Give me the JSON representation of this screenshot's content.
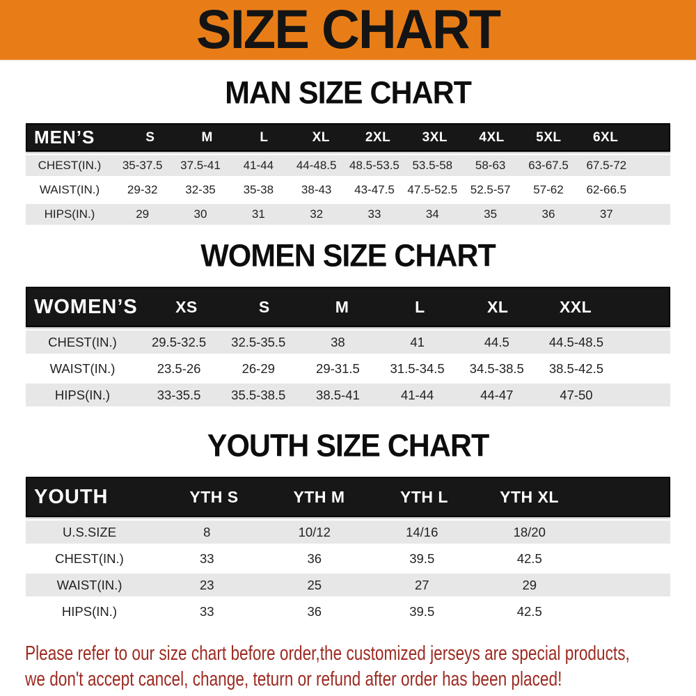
{
  "banner": {
    "title": "SIZE CHART"
  },
  "sections": [
    {
      "key": "men",
      "title": "MAN SIZE CHART",
      "header": {
        "label": "MEN’S",
        "columns": [
          "S",
          "M",
          "L",
          "XL",
          "2XL",
          "3XL",
          "4XL",
          "5XL",
          "6XL"
        ]
      },
      "rows": [
        {
          "label": "CHEST(IN.)",
          "values": [
            "35-37.5",
            "37.5-41",
            "41-44",
            "44-48.5",
            "48.5-53.5",
            "53.5-58",
            "58-63",
            "63-67.5",
            "67.5-72"
          ]
        },
        {
          "label": "WAIST(IN.)",
          "values": [
            "29-32",
            "32-35",
            "35-38",
            "38-43",
            "43-47.5",
            "47.5-52.5",
            "52.5-57",
            "57-62",
            "62-66.5"
          ]
        },
        {
          "label": "HIPS(IN.)",
          "values": [
            "29",
            "30",
            "31",
            "32",
            "33",
            "34",
            "35",
            "36",
            "37"
          ]
        }
      ]
    },
    {
      "key": "women",
      "title": "WOMEN SIZE CHART",
      "header": {
        "label": "WOMEN’S",
        "columns": [
          "XS",
          "S",
          "M",
          "L",
          "XL",
          "XXL"
        ]
      },
      "rows": [
        {
          "label": "CHEST(IN.)",
          "values": [
            "29.5-32.5",
            "32.5-35.5",
            "38",
            "41",
            "44.5",
            "44.5-48.5"
          ]
        },
        {
          "label": "WAIST(IN.)",
          "values": [
            "23.5-26",
            "26-29",
            "29-31.5",
            "31.5-34.5",
            "34.5-38.5",
            "38.5-42.5"
          ]
        },
        {
          "label": "HIPS(IN.)",
          "values": [
            "33-35.5",
            "35.5-38.5",
            "38.5-41",
            "41-44",
            "44-47",
            "47-50"
          ]
        }
      ]
    },
    {
      "key": "youth",
      "title": "YOUTH SIZE CHART",
      "header": {
        "label": "YOUTH",
        "columns": [
          "YTH S",
          "YTH M",
          "YTH L",
          "YTH XL"
        ]
      },
      "rows": [
        {
          "label": "U.S.SIZE",
          "values": [
            "8",
            "10/12",
            "14/16",
            "18/20"
          ]
        },
        {
          "label": "CHEST(IN.)",
          "values": [
            "33",
            "36",
            "39.5",
            "42.5"
          ]
        },
        {
          "label": "WAIST(IN.)",
          "values": [
            "23",
            "25",
            "27",
            "29"
          ]
        },
        {
          "label": "HIPS(IN.)",
          "values": [
            "33",
            "36",
            "39.5",
            "42.5"
          ]
        }
      ]
    }
  ],
  "disclaimer": {
    "line1": "Please refer to our size chart before order,the customized jerseys are special products,",
    "line2": "we don't accept cancel, change, teturn or refund after order has been placed!"
  },
  "colors": {
    "banner_bg": "#E87D18",
    "banner_text": "#141414",
    "header_bar_bg": "#171717",
    "header_bar_text": "#ffffff",
    "row_alt_bg": "#e7e7e7",
    "row_text": "#222222",
    "disclaimer_text": "#9c2a21"
  }
}
